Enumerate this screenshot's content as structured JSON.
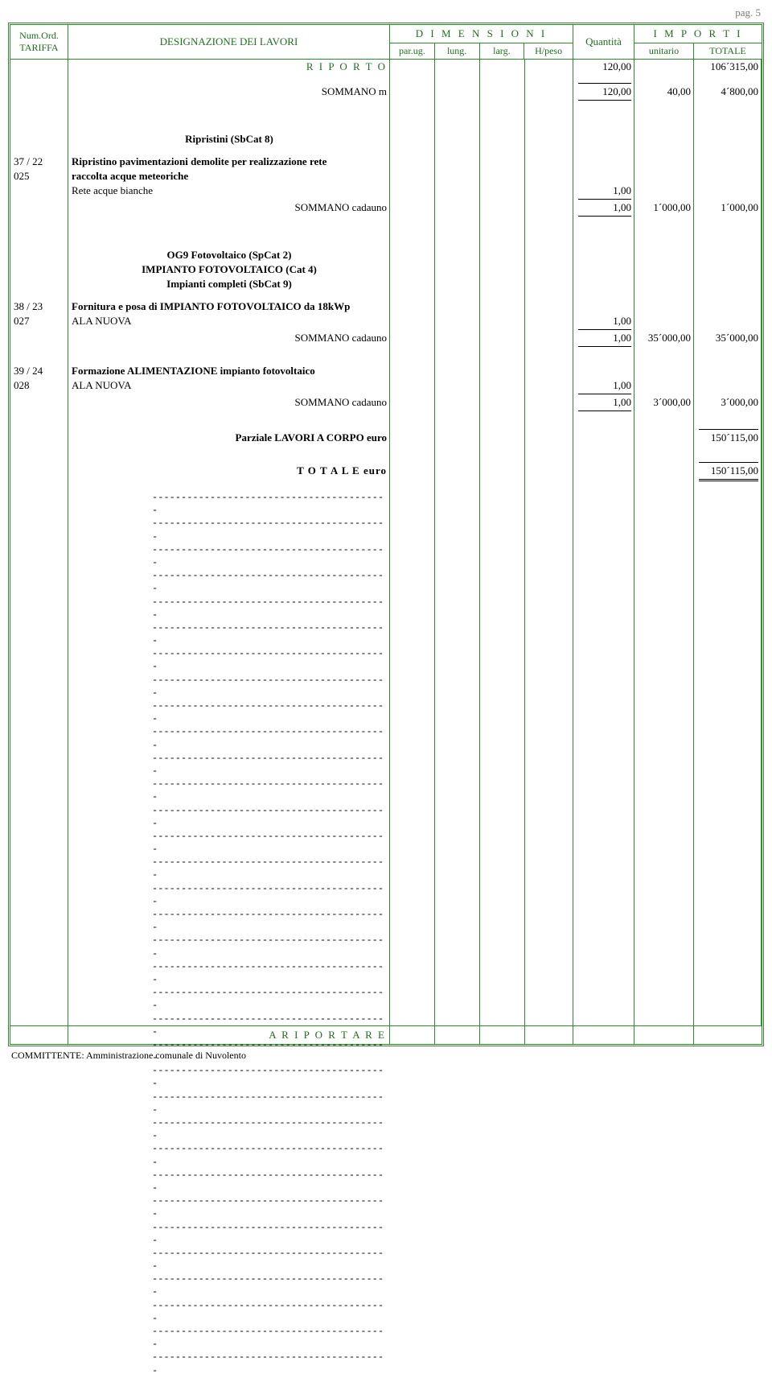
{
  "page_label": "pag. 5",
  "header": {
    "tariffa_top": "Num.Ord.",
    "tariffa_bottom": "TARIFFA",
    "designazione": "DESIGNAZIONE DEI LAVORI",
    "dimensioni": "D I M E N S I O N I",
    "parug": "par.ug.",
    "lung": "lung.",
    "larg": "larg.",
    "hpeso": "H/peso",
    "quantita": "Quantità",
    "importi": "I M P O R T I",
    "unitario": "unitario",
    "totale": "TOTALE"
  },
  "riporto": {
    "label": "R I P O R T O",
    "qty": "120,00",
    "tot": "106´315,00"
  },
  "r1": {
    "des": "SOMMANO m",
    "qty": "120,00",
    "unit": "40,00",
    "tot": "4´800,00"
  },
  "cat8": {
    "title": "Ripristini  (SbCat 8)",
    "code1": "37 / 22",
    "code2": "025",
    "line1": "Ripristino pavimentazioni demolite per realizzazione rete",
    "line2": "raccolta acque meteoriche",
    "line3": "Rete acque bianche",
    "qty3": "1,00",
    "sum": "SOMMANO cadauno",
    "sqty": "1,00",
    "sunit": "1´000,00",
    "stot": "1´000,00"
  },
  "cat9": {
    "t1": "OG9 Fotovoltaico  (SpCat 2)",
    "t2": "IMPIANTO FOTOVOLTAICO  (Cat 4)",
    "t3": "Impianti completi  (SbCat 9)",
    "code1": "38 / 23",
    "code2": "027",
    "line1": "Fornitura e posa di IMPIANTO FOTOVOLTAICO da 18kWp",
    "line2": "ALA NUOVA",
    "qty2": "1,00",
    "sum": "SOMMANO cadauno",
    "sqty": "1,00",
    "sunit": "35´000,00",
    "stot": "35´000,00"
  },
  "item3": {
    "code1": "39 / 24",
    "code2": "028",
    "line1": "Formazione ALIMENTAZIONE impianto fotovoltaico",
    "line2": "ALA NUOVA",
    "qty2": "1,00",
    "sum": "SOMMANO cadauno",
    "sqty": "1,00",
    "sunit": "3´000,00",
    "stot": "3´000,00"
  },
  "parziale": {
    "label": "Parziale LAVORI A CORPO  euro",
    "tot": "150´115,00"
  },
  "totale": {
    "label": "T O T A L E   euro",
    "tot": "150´115,00"
  },
  "dash_line": "-----------------------------------------",
  "dash_count": 34,
  "footer": {
    "label": "A  R I P O R T A R E"
  },
  "committente": "COMMITTENTE: Amministrazione comunale di Nuvolento",
  "colors": {
    "border": "#2e8b2e",
    "text_green": "#1f6f1f",
    "text_gray": "#7a7a7a"
  }
}
